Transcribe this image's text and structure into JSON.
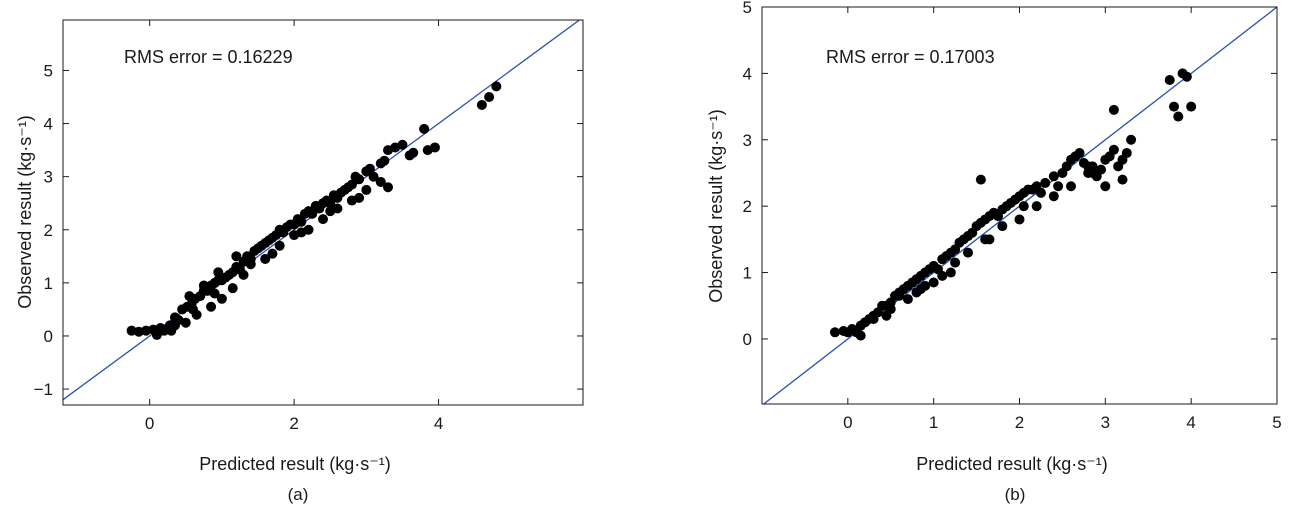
{
  "chart_data": [
    {
      "type": "scatter",
      "panel_label": "(a)",
      "annotation": "RMS error = 0.16229",
      "xlabel": "Predicted result (kg·s⁻¹)",
      "ylabel": "Observed result (kg·s⁻¹)",
      "xlim": [
        -1.2,
        6.0
      ],
      "ylim": [
        -1.3,
        5.95
      ],
      "xticks": [
        0,
        2,
        4
      ],
      "yticks": [
        -1,
        0,
        1,
        2,
        3,
        4,
        5
      ],
      "ytick_labels": [
        "−1",
        "0",
        "1",
        "2",
        "3",
        "4",
        "5"
      ],
      "grid": false,
      "marker_color": "#000000",
      "reference_line": {
        "x": [
          -1.2,
          6.0
        ],
        "y": [
          -1.2,
          6.0
        ],
        "color": "#2b4fb0"
      },
      "series": [
        {
          "x": [
            -0.25,
            -0.15,
            -0.05,
            0.05,
            0.15,
            0.2,
            0.28,
            0.35,
            0.4,
            0.45,
            0.52,
            0.58,
            0.63,
            0.7,
            0.75,
            0.8,
            0.85,
            0.9,
            0.95,
            1.0,
            1.05,
            1.1,
            1.15,
            1.2,
            1.25,
            1.3,
            1.35,
            1.4,
            1.45,
            1.5,
            1.55,
            1.6,
            1.65,
            1.7,
            1.75,
            1.8,
            1.85,
            1.9,
            1.95,
            2.0,
            2.05,
            2.1,
            2.15,
            2.2,
            2.25,
            2.3,
            2.35,
            2.4,
            2.45,
            2.5,
            2.55,
            2.6,
            2.65,
            2.7,
            2.75,
            2.8,
            2.85,
            2.9,
            3.0,
            3.05,
            3.1,
            3.2,
            3.25,
            3.3,
            3.4,
            3.5,
            3.6,
            3.65,
            3.8,
            3.85,
            3.95,
            4.6,
            4.7,
            4.8,
            0.3,
            0.5,
            0.65,
            0.85,
            1.0,
            1.15,
            0.55,
            0.75,
            0.95,
            1.2,
            1.4,
            1.6,
            1.8,
            2.0,
            2.2,
            2.4,
            2.6,
            2.8,
            3.0,
            3.2,
            0.1,
            0.35,
            0.6,
            0.9,
            1.3,
            1.7,
            2.1,
            2.5,
            2.9,
            3.3
          ],
          "y": [
            0.1,
            0.08,
            0.1,
            0.12,
            0.15,
            0.1,
            0.2,
            0.35,
            0.3,
            0.5,
            0.55,
            0.6,
            0.7,
            0.75,
            0.85,
            0.85,
            0.95,
            1.0,
            1.05,
            1.05,
            1.1,
            1.15,
            1.2,
            1.3,
            1.25,
            1.4,
            1.5,
            1.45,
            1.6,
            1.65,
            1.7,
            1.75,
            1.8,
            1.85,
            1.9,
            2.0,
            1.95,
            2.05,
            2.1,
            2.1,
            2.2,
            2.15,
            2.3,
            2.35,
            2.3,
            2.45,
            2.4,
            2.5,
            2.55,
            2.5,
            2.65,
            2.6,
            2.7,
            2.75,
            2.8,
            2.85,
            3.0,
            2.95,
            3.1,
            3.15,
            3.0,
            3.25,
            3.3,
            3.5,
            3.55,
            3.6,
            3.4,
            3.45,
            3.9,
            3.5,
            3.55,
            4.35,
            4.5,
            4.7,
            0.1,
            0.25,
            0.4,
            0.55,
            0.7,
            0.9,
            0.75,
            0.95,
            1.2,
            1.5,
            1.35,
            1.45,
            1.7,
            1.9,
            2.0,
            2.2,
            2.4,
            2.55,
            2.75,
            2.9,
            0.02,
            0.2,
            0.5,
            0.8,
            1.15,
            1.55,
            1.95,
            2.35,
            2.6,
            2.8
          ]
        }
      ]
    },
    {
      "type": "scatter",
      "panel_label": "(b)",
      "annotation": "RMS error = 0.17003",
      "xlabel": "Predicted result (kg·s⁻¹)",
      "ylabel": "Observed result (kg·s⁻¹)",
      "xlim": [
        -1.0,
        5.0
      ],
      "ylim": [
        -0.98,
        5.0
      ],
      "xticks": [
        0,
        1,
        2,
        3,
        4,
        5
      ],
      "yticks": [
        0,
        1,
        2,
        3,
        4,
        5
      ],
      "ytick_labels": [
        "0",
        "1",
        "2",
        "3",
        "4",
        "5"
      ],
      "grid": false,
      "marker_color": "#000000",
      "reference_line": {
        "x": [
          -1.0,
          5.0
        ],
        "y": [
          -1.0,
          5.0
        ],
        "color": "#2b4fb0"
      },
      "series": [
        {
          "x": [
            -0.15,
            -0.05,
            0.0,
            0.05,
            0.1,
            0.15,
            0.2,
            0.25,
            0.3,
            0.35,
            0.4,
            0.45,
            0.5,
            0.55,
            0.6,
            0.65,
            0.7,
            0.75,
            0.8,
            0.85,
            0.9,
            0.95,
            1.0,
            1.05,
            1.1,
            1.15,
            1.2,
            1.25,
            1.3,
            1.35,
            1.4,
            1.45,
            1.5,
            1.55,
            1.6,
            1.65,
            1.7,
            1.75,
            1.8,
            1.85,
            1.9,
            1.95,
            2.0,
            2.05,
            2.1,
            2.15,
            2.2,
            2.25,
            2.3,
            2.4,
            2.5,
            2.55,
            2.6,
            2.65,
            2.7,
            2.75,
            2.8,
            2.85,
            2.9,
            2.95,
            3.0,
            3.05,
            3.1,
            3.15,
            3.2,
            3.25,
            3.3,
            3.75,
            3.8,
            3.85,
            3.9,
            3.95,
            4.0,
            1.55,
            0.3,
            0.5,
            0.7,
            0.9,
            1.1,
            0.6,
            0.8,
            1.0,
            1.2,
            1.4,
            1.6,
            1.8,
            2.0,
            2.2,
            2.4,
            2.6,
            2.8,
            3.0,
            3.2,
            0.15,
            0.45,
            0.85,
            1.25,
            1.65,
            2.05,
            2.45,
            2.85,
            3.1
          ],
          "y": [
            0.1,
            0.12,
            0.1,
            0.15,
            0.1,
            0.2,
            0.25,
            0.3,
            0.35,
            0.4,
            0.5,
            0.5,
            0.55,
            0.65,
            0.7,
            0.75,
            0.8,
            0.85,
            0.9,
            0.95,
            1.0,
            1.05,
            1.1,
            1.05,
            1.2,
            1.25,
            1.3,
            1.35,
            1.45,
            1.5,
            1.55,
            1.6,
            1.7,
            1.75,
            1.8,
            1.85,
            1.9,
            1.85,
            1.95,
            2.0,
            2.05,
            2.1,
            2.15,
            2.2,
            2.25,
            2.25,
            2.3,
            2.2,
            2.35,
            2.45,
            2.5,
            2.6,
            2.7,
            2.75,
            2.8,
            2.65,
            2.6,
            2.5,
            2.45,
            2.55,
            2.7,
            2.75,
            2.85,
            2.6,
            2.7,
            2.8,
            3.0,
            3.9,
            3.5,
            3.35,
            4.0,
            3.95,
            3.5,
            2.4,
            0.3,
            0.45,
            0.6,
            0.8,
            0.95,
            0.65,
            0.7,
            0.85,
            1.0,
            1.3,
            1.5,
            1.7,
            1.8,
            2.0,
            2.15,
            2.3,
            2.5,
            2.3,
            2.4,
            0.05,
            0.35,
            0.75,
            1.15,
            1.5,
            2.0,
            2.3,
            2.6,
            3.45
          ]
        }
      ]
    }
  ]
}
